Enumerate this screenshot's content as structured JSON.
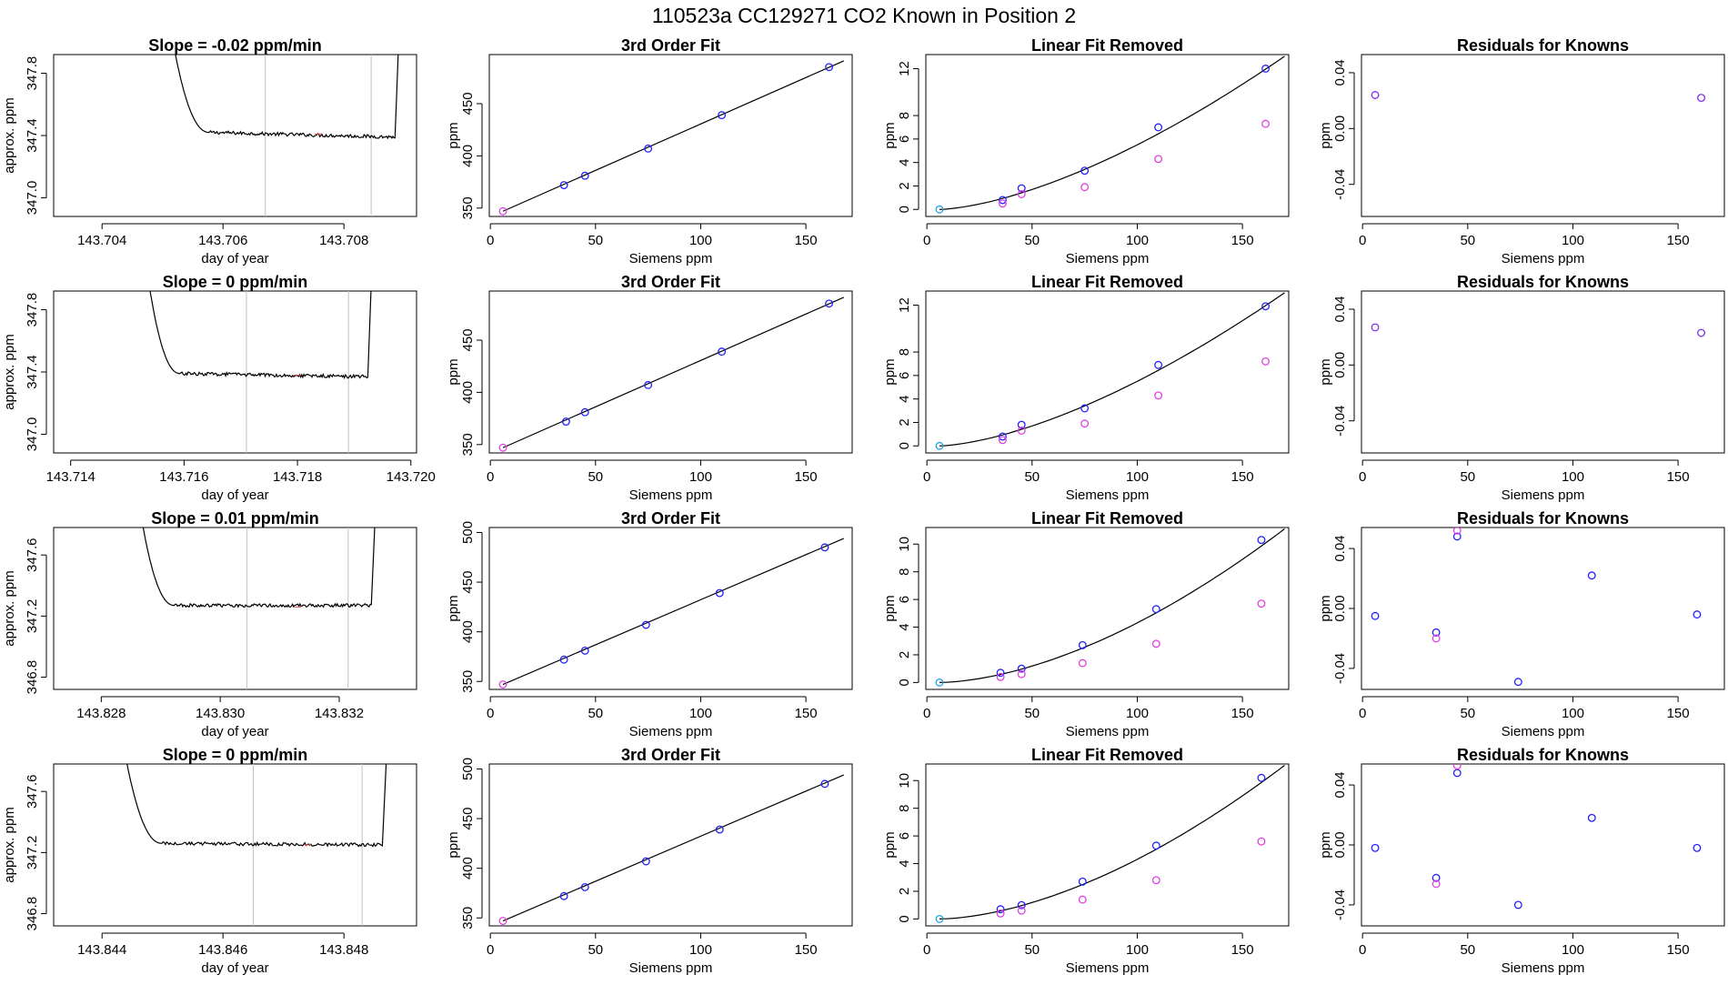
{
  "figure": {
    "title": "110523a      CC129271    CO2 Known in Position  2"
  },
  "colors": {
    "trace": "#000000",
    "cursor": "#c0c0c0",
    "blue_point": "#2020ff",
    "magenta_point": "#e040e0",
    "cyan_point": "#20a0e0",
    "purple_point": "#8030e0",
    "fit_line": "#000000"
  },
  "chart_data": [
    {
      "type": "line",
      "row": 0,
      "col": 0,
      "title": "Slope =  -0.02  ppm/min",
      "xlabel": "day of year",
      "ylabel": "approx. ppm",
      "xlim": [
        143.7032,
        143.7092
      ],
      "ylim": [
        346.88,
        347.92
      ],
      "xticks": [
        143.704,
        143.706,
        143.708
      ],
      "xtick_labels": [
        "143.704",
        "143.706",
        "143.708"
      ],
      "yticks": [
        347.0,
        347.4,
        347.8
      ],
      "ytick_labels": [
        "347.0",
        "347.4",
        "347.8"
      ],
      "vlines": [
        143.7067,
        143.70845
      ],
      "trace": {
        "x0": 143.7051,
        "x1": 143.7089,
        "drop_end": 0.18,
        "plateau": 347.42,
        "tail": 347.39,
        "spike_at": 143.7089
      }
    },
    {
      "type": "scatter",
      "row": 0,
      "col": 1,
      "title": "3rd Order Fit",
      "xlabel": "Siemens ppm",
      "ylabel": "ppm",
      "xlim": [
        -0.5,
        172
      ],
      "ylim": [
        342,
        497
      ],
      "xticks": [
        0,
        50,
        100,
        150
      ],
      "xtick_labels": [
        "0",
        "50",
        "100",
        "150"
      ],
      "yticks": [
        350,
        400,
        450
      ],
      "ytick_labels": [
        "350",
        "400",
        "450"
      ],
      "fit": {
        "kind": "linear",
        "x": [
          6,
          168
        ],
        "y": [
          347,
          491
        ]
      },
      "series": [
        {
          "name": "knowns",
          "color": "blue_point",
          "x": [
            35,
            45,
            75,
            110,
            161
          ],
          "y": [
            372,
            381,
            407,
            439,
            485
          ]
        },
        {
          "name": "reference",
          "color": "magenta_point",
          "x": [
            6
          ],
          "y": [
            347
          ]
        }
      ]
    },
    {
      "type": "scatter",
      "row": 0,
      "col": 2,
      "title": "Linear Fit Removed",
      "xlabel": "Siemens ppm",
      "ylabel": "ppm",
      "xlim": [
        -0.5,
        172
      ],
      "ylim": [
        -0.6,
        13.2
      ],
      "xticks": [
        0,
        50,
        100,
        150
      ],
      "xtick_labels": [
        "0",
        "50",
        "100",
        "150"
      ],
      "yticks": [
        0,
        2,
        4,
        6,
        8,
        12
      ],
      "ytick_labels": [
        "0",
        "2",
        "4",
        "6",
        "8",
        "12"
      ],
      "fit": {
        "kind": "curve",
        "x": [
          6,
          170
        ],
        "exp": 1.55,
        "y_at_x1": 13.05
      },
      "series": [
        {
          "name": "knowns",
          "color": "blue_point",
          "x": [
            36,
            45,
            75,
            110,
            161
          ],
          "y": [
            0.8,
            1.8,
            3.3,
            7.0,
            12.0
          ]
        },
        {
          "name": "raw",
          "color": "magenta_point",
          "x": [
            36,
            45,
            75,
            110,
            161
          ],
          "y": [
            0.5,
            1.3,
            1.9,
            4.3,
            7.3
          ]
        },
        {
          "name": "origin",
          "color": "cyan_point",
          "x": [
            6
          ],
          "y": [
            0
          ]
        }
      ]
    },
    {
      "type": "scatter",
      "row": 0,
      "col": 3,
      "title": "Residuals for Knowns",
      "xlabel": "Siemens ppm",
      "ylabel": "ppm",
      "xlim": [
        -0.5,
        172
      ],
      "ylim": [
        -0.063,
        0.053
      ],
      "xticks": [
        0,
        50,
        100,
        150
      ],
      "xtick_labels": [
        "0",
        "50",
        "100",
        "150"
      ],
      "yticks": [
        -0.04,
        0.0,
        0.04
      ],
      "ytick_labels": [
        "-0.04",
        "0.00",
        "0.04"
      ],
      "series": [
        {
          "name": "residuals",
          "color": "purple_point",
          "x": [
            6,
            161
          ],
          "y": [
            0.024,
            0.022
          ]
        }
      ]
    },
    {
      "type": "line",
      "row": 1,
      "col": 0,
      "title": "Slope =  0  ppm/min",
      "xlabel": "day of year",
      "ylabel": "approx. ppm",
      "xlim": [
        143.7137,
        143.7201
      ],
      "ylim": [
        346.88,
        347.92
      ],
      "xticks": [
        143.714,
        143.716,
        143.718,
        143.72
      ],
      "xtick_labels": [
        "143.714",
        "143.716",
        "143.718",
        "143.720"
      ],
      "yticks": [
        347.0,
        347.4,
        347.8
      ],
      "ytick_labels": [
        "347.0",
        "347.4",
        "347.8"
      ],
      "vlines": [
        143.7171,
        143.7189
      ],
      "trace": {
        "x0": 143.7153,
        "x1": 143.7193,
        "drop_end": 0.16,
        "plateau": 347.39,
        "tail": 347.37,
        "spike_at": 143.7193
      }
    },
    {
      "type": "scatter",
      "row": 1,
      "col": 1,
      "title": "3rd Order Fit",
      "xlabel": "Siemens ppm",
      "ylabel": "ppm",
      "xlim": [
        -0.5,
        172
      ],
      "ylim": [
        342,
        497
      ],
      "xticks": [
        0,
        50,
        100,
        150
      ],
      "xtick_labels": [
        "0",
        "50",
        "100",
        "150"
      ],
      "yticks": [
        350,
        400,
        450
      ],
      "ytick_labels": [
        "350",
        "400",
        "450"
      ],
      "fit": {
        "kind": "linear",
        "x": [
          6,
          168
        ],
        "y": [
          347,
          491
        ]
      },
      "series": [
        {
          "name": "knowns",
          "color": "blue_point",
          "x": [
            36,
            45,
            75,
            110,
            161
          ],
          "y": [
            372,
            381,
            407,
            439,
            485
          ]
        },
        {
          "name": "reference",
          "color": "magenta_point",
          "x": [
            6
          ],
          "y": [
            347
          ]
        }
      ]
    },
    {
      "type": "scatter",
      "row": 1,
      "col": 2,
      "title": "Linear Fit Removed",
      "xlabel": "Siemens ppm",
      "ylabel": "ppm",
      "xlim": [
        -0.5,
        172
      ],
      "ylim": [
        -0.6,
        13.2
      ],
      "xticks": [
        0,
        50,
        100,
        150
      ],
      "xtick_labels": [
        "0",
        "50",
        "100",
        "150"
      ],
      "yticks": [
        0,
        2,
        4,
        6,
        8,
        12
      ],
      "ytick_labels": [
        "0",
        "2",
        "4",
        "6",
        "8",
        "12"
      ],
      "fit": {
        "kind": "curve",
        "x": [
          6,
          170
        ],
        "exp": 1.55,
        "y_at_x1": 13.05
      },
      "series": [
        {
          "name": "knowns",
          "color": "blue_point",
          "x": [
            36,
            45,
            75,
            110,
            161
          ],
          "y": [
            0.8,
            1.8,
            3.2,
            6.9,
            11.9
          ]
        },
        {
          "name": "raw",
          "color": "magenta_point",
          "x": [
            36,
            45,
            75,
            110,
            161
          ],
          "y": [
            0.5,
            1.3,
            1.9,
            4.3,
            7.2
          ]
        },
        {
          "name": "origin",
          "color": "cyan_point",
          "x": [
            6
          ],
          "y": [
            0
          ]
        }
      ]
    },
    {
      "type": "scatter",
      "row": 1,
      "col": 3,
      "title": "Residuals for Knowns",
      "xlabel": "Siemens ppm",
      "ylabel": "ppm",
      "xlim": [
        -0.5,
        172
      ],
      "ylim": [
        -0.063,
        0.053
      ],
      "xticks": [
        0,
        50,
        100,
        150
      ],
      "xtick_labels": [
        "0",
        "50",
        "100",
        "150"
      ],
      "yticks": [
        -0.04,
        0.0,
        0.04
      ],
      "ytick_labels": [
        "-0.04",
        "0.00",
        "0.04"
      ],
      "series": [
        {
          "name": "residuals",
          "color": "purple_point",
          "x": [
            6,
            161
          ],
          "y": [
            0.027,
            0.023
          ]
        }
      ]
    },
    {
      "type": "line",
      "row": 2,
      "col": 0,
      "title": "Slope =  0.01  ppm/min",
      "xlabel": "day of year",
      "ylabel": "approx. ppm",
      "xlim": [
        143.8272,
        143.8333
      ],
      "ylim": [
        346.72,
        347.78
      ],
      "xticks": [
        143.828,
        143.83,
        143.832
      ],
      "xtick_labels": [
        "143.828",
        "143.830",
        "143.832"
      ],
      "yticks": [
        346.8,
        347.2,
        347.6
      ],
      "ytick_labels": [
        "346.8",
        "347.2",
        "347.6"
      ],
      "vlines": [
        143.83045,
        143.83215
      ],
      "trace": {
        "x0": 143.8286,
        "x1": 143.8326,
        "drop_end": 0.16,
        "plateau": 347.27,
        "tail": 347.27,
        "spike_at": 143.8326
      }
    },
    {
      "type": "scatter",
      "row": 2,
      "col": 1,
      "title": "3rd Order Fit",
      "xlabel": "Siemens ppm",
      "ylabel": "ppm",
      "xlim": [
        -0.5,
        172
      ],
      "ylim": [
        342,
        505
      ],
      "xticks": [
        0,
        50,
        100,
        150
      ],
      "xtick_labels": [
        "0",
        "50",
        "100",
        "150"
      ],
      "yticks": [
        350,
        400,
        450,
        500
      ],
      "ytick_labels": [
        "350",
        "400",
        "450",
        "500"
      ],
      "fit": {
        "kind": "linear",
        "x": [
          6,
          168
        ],
        "y": [
          347,
          494
        ]
      },
      "series": [
        {
          "name": "knowns",
          "color": "blue_point",
          "x": [
            35,
            45,
            74,
            109,
            159
          ],
          "y": [
            372,
            381,
            407,
            439,
            485
          ]
        },
        {
          "name": "reference",
          "color": "magenta_point",
          "x": [
            6
          ],
          "y": [
            347
          ]
        }
      ]
    },
    {
      "type": "scatter",
      "row": 2,
      "col": 2,
      "title": "Linear Fit Removed",
      "xlabel": "Siemens ppm",
      "ylabel": "ppm",
      "xlim": [
        -0.5,
        172
      ],
      "ylim": [
        -0.5,
        11.2
      ],
      "xticks": [
        0,
        50,
        100,
        150
      ],
      "xtick_labels": [
        "0",
        "50",
        "100",
        "150"
      ],
      "yticks": [
        0,
        2,
        4,
        6,
        8,
        10
      ],
      "ytick_labels": [
        "0",
        "2",
        "4",
        "6",
        "8",
        "10"
      ],
      "fit": {
        "kind": "curve",
        "x": [
          6,
          170
        ],
        "exp": 1.7,
        "y_at_x1": 11.1
      },
      "series": [
        {
          "name": "knowns",
          "color": "blue_point",
          "x": [
            35,
            45,
            74,
            109,
            159
          ],
          "y": [
            0.7,
            1.0,
            2.7,
            5.3,
            10.3
          ]
        },
        {
          "name": "raw",
          "color": "magenta_point",
          "x": [
            35,
            45,
            74,
            109,
            159
          ],
          "y": [
            0.4,
            0.6,
            1.4,
            2.8,
            5.7
          ]
        },
        {
          "name": "origin",
          "color": "cyan_point",
          "x": [
            6
          ],
          "y": [
            0
          ]
        }
      ]
    },
    {
      "type": "scatter",
      "row": 2,
      "col": 3,
      "title": "Residuals for Knowns",
      "xlabel": "Siemens ppm",
      "ylabel": "ppm",
      "xlim": [
        -0.5,
        172
      ],
      "ylim": [
        -0.054,
        0.054
      ],
      "xticks": [
        0,
        50,
        100,
        150
      ],
      "xtick_labels": [
        "0",
        "50",
        "100",
        "150"
      ],
      "yticks": [
        -0.04,
        0.0,
        0.04
      ],
      "ytick_labels": [
        "-0.04",
        "0.00",
        "0.04"
      ],
      "series": [
        {
          "name": "residuals-blue",
          "color": "blue_point",
          "x": [
            6,
            35,
            45,
            74,
            109,
            159
          ],
          "y": [
            -0.005,
            -0.016,
            0.048,
            -0.049,
            0.022,
            -0.004
          ]
        },
        {
          "name": "residuals-magenta",
          "color": "magenta_point",
          "x": [
            35,
            45
          ],
          "y": [
            -0.02,
            0.052
          ]
        }
      ]
    },
    {
      "type": "line",
      "row": 3,
      "col": 0,
      "title": "Slope =  0  ppm/min",
      "xlabel": "day of year",
      "ylabel": "approx. ppm",
      "xlim": [
        143.8432,
        143.8492
      ],
      "ylim": [
        346.72,
        347.78
      ],
      "xticks": [
        143.844,
        143.846,
        143.848
      ],
      "xtick_labels": [
        "143.844",
        "143.846",
        "143.848"
      ],
      "yticks": [
        346.8,
        347.2,
        347.6
      ],
      "ytick_labels": [
        "346.8",
        "347.2",
        "347.6"
      ],
      "vlines": [
        143.8465,
        143.8483
      ],
      "trace": {
        "x0": 143.8443,
        "x1": 143.8487,
        "drop_end": 0.16,
        "plateau": 347.26,
        "tail": 347.25,
        "spike_at": 143.8487
      }
    },
    {
      "type": "scatter",
      "row": 3,
      "col": 1,
      "title": "3rd Order Fit",
      "xlabel": "Siemens ppm",
      "ylabel": "ppm",
      "xlim": [
        -0.5,
        172
      ],
      "ylim": [
        342,
        505
      ],
      "xticks": [
        0,
        50,
        100,
        150
      ],
      "xtick_labels": [
        "0",
        "50",
        "100",
        "150"
      ],
      "yticks": [
        350,
        400,
        450,
        500
      ],
      "ytick_labels": [
        "350",
        "400",
        "450",
        "500"
      ],
      "fit": {
        "kind": "linear",
        "x": [
          6,
          168
        ],
        "y": [
          347,
          494
        ]
      },
      "series": [
        {
          "name": "knowns",
          "color": "blue_point",
          "x": [
            35,
            45,
            74,
            109,
            159
          ],
          "y": [
            372,
            381,
            407,
            439,
            485
          ]
        },
        {
          "name": "reference",
          "color": "magenta_point",
          "x": [
            6
          ],
          "y": [
            347
          ]
        }
      ]
    },
    {
      "type": "scatter",
      "row": 3,
      "col": 2,
      "title": "Linear Fit Removed",
      "xlabel": "Siemens ppm",
      "ylabel": "ppm",
      "xlim": [
        -0.5,
        172
      ],
      "ylim": [
        -0.5,
        11.2
      ],
      "xticks": [
        0,
        50,
        100,
        150
      ],
      "xtick_labels": [
        "0",
        "50",
        "100",
        "150"
      ],
      "yticks": [
        0,
        2,
        4,
        6,
        8,
        10
      ],
      "ytick_labels": [
        "0",
        "2",
        "4",
        "6",
        "8",
        "10"
      ],
      "fit": {
        "kind": "curve",
        "x": [
          6,
          170
        ],
        "exp": 1.7,
        "y_at_x1": 11.1
      },
      "series": [
        {
          "name": "knowns",
          "color": "blue_point",
          "x": [
            35,
            45,
            74,
            109,
            159
          ],
          "y": [
            0.7,
            1.0,
            2.7,
            5.3,
            10.2
          ]
        },
        {
          "name": "raw",
          "color": "magenta_point",
          "x": [
            35,
            45,
            74,
            109,
            159
          ],
          "y": [
            0.4,
            0.6,
            1.4,
            2.8,
            5.6
          ]
        },
        {
          "name": "origin",
          "color": "cyan_point",
          "x": [
            6
          ],
          "y": [
            0
          ]
        }
      ]
    },
    {
      "type": "scatter",
      "row": 3,
      "col": 3,
      "title": "Residuals for Knowns",
      "xlabel": "Siemens ppm",
      "ylabel": "ppm",
      "xlim": [
        -0.5,
        172
      ],
      "ylim": [
        -0.054,
        0.054
      ],
      "xticks": [
        0,
        50,
        100,
        150
      ],
      "xtick_labels": [
        "0",
        "50",
        "100",
        "150"
      ],
      "yticks": [
        -0.04,
        0.0,
        0.04
      ],
      "ytick_labels": [
        "-0.04",
        "0.00",
        "0.04"
      ],
      "series": [
        {
          "name": "residuals-blue",
          "color": "blue_point",
          "x": [
            6,
            35,
            45,
            74,
            109,
            159
          ],
          "y": [
            -0.002,
            -0.022,
            0.048,
            -0.04,
            0.018,
            -0.002
          ]
        },
        {
          "name": "residuals-magenta",
          "color": "magenta_point",
          "x": [
            35,
            45
          ],
          "y": [
            -0.026,
            0.053
          ]
        }
      ]
    }
  ]
}
